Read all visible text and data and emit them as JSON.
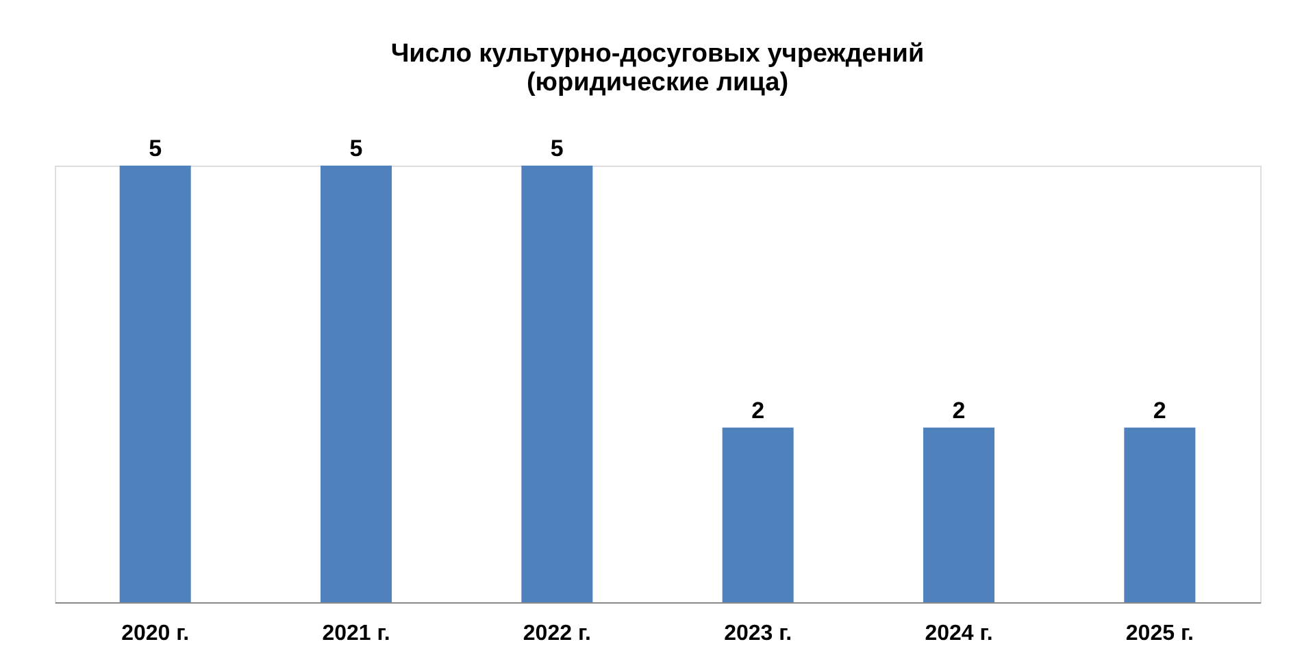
{
  "chart_data": {
    "type": "bar",
    "title": "Число культурно-досуговых учреждений\n(юридические лица)",
    "categories": [
      "2020 г.",
      "2021 г.",
      "2022 г.",
      "2023 г.",
      "2024 г.",
      "2025 г."
    ],
    "values": [
      5,
      5,
      5,
      2,
      2,
      2
    ],
    "color": "#4f81bd",
    "data_labels": true,
    "grid": false
  }
}
